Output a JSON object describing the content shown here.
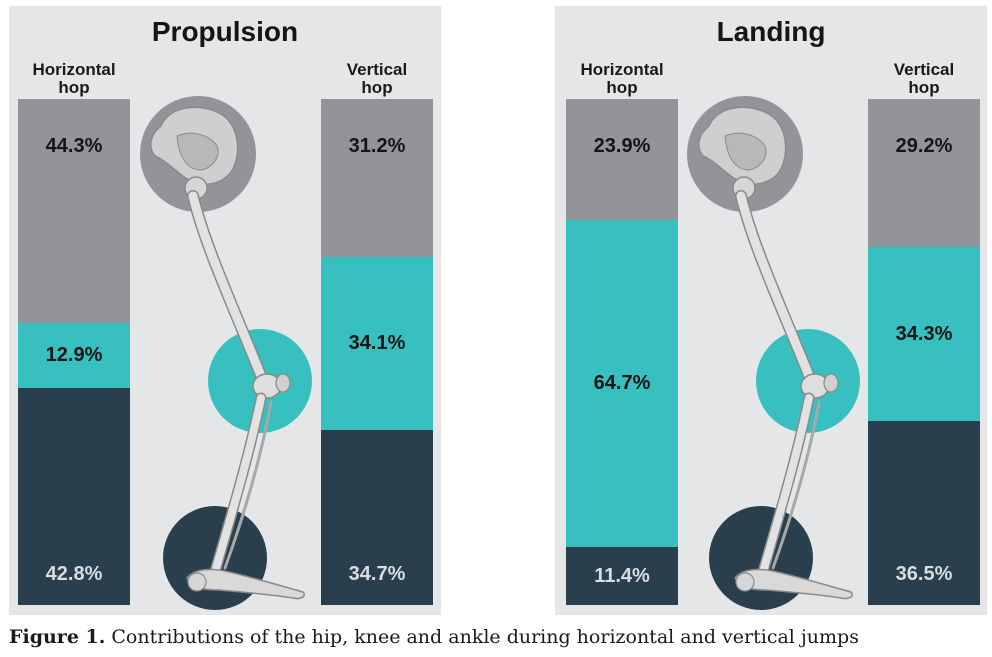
{
  "chart_data": [
    {
      "type": "bar",
      "stacked": true,
      "title": "Propulsion",
      "categories": [
        "Horizontal hop",
        "Vertical hop"
      ],
      "series": [
        {
          "name": "Hip",
          "color": "#939499",
          "values": [
            44.3,
            31.2
          ],
          "labels": [
            "44.3%",
            "31.2%"
          ]
        },
        {
          "name": "Knee",
          "color": "#38bfbf",
          "values": [
            12.9,
            34.1
          ],
          "labels": [
            "12.9%",
            "34.1%"
          ]
        },
        {
          "name": "Ankle",
          "color": "#2a3f4e",
          "values": [
            42.8,
            34.7
          ],
          "labels": [
            "42.8%",
            "34.7%"
          ]
        }
      ],
      "ylim": [
        0,
        100
      ]
    },
    {
      "type": "bar",
      "stacked": true,
      "title": "Landing",
      "categories": [
        "Horizontal hop",
        "Vertical hop"
      ],
      "series": [
        {
          "name": "Hip",
          "color": "#939499",
          "values": [
            23.9,
            29.2
          ],
          "labels": [
            "23.9%",
            "29.2%"
          ]
        },
        {
          "name": "Knee",
          "color": "#38bfbf",
          "values": [
            64.7,
            34.3
          ],
          "labels": [
            "64.7%",
            "34.3%"
          ]
        },
        {
          "name": "Ankle",
          "color": "#2a3f4e",
          "values": [
            11.4,
            36.5
          ],
          "labels": [
            "11.4%",
            "36.5%"
          ]
        }
      ],
      "ylim": [
        0,
        100
      ]
    }
  ],
  "category_labels": [
    [
      "Horizontal",
      "hop"
    ],
    [
      "Vertical",
      "hop"
    ]
  ],
  "caption": {
    "label": "Figure 1.",
    "text": " Contributions of the hip, knee and ankle during horizontal and vertical jumps"
  },
  "colors": {
    "panel_bg": "#e5e6e8",
    "hip": "#939499",
    "knee": "#38bfbf",
    "ankle": "#2a3f4e",
    "bone": "#d9d9d9"
  }
}
